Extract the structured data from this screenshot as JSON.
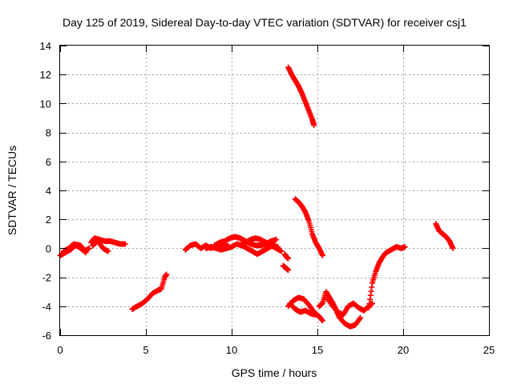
{
  "chart_data": {
    "type": "scatter",
    "title": "Day 125 of 2019, Sidereal Day-to-day VTEC variation (SDTVAR) for receiver csj1",
    "xlabel": "GPS time / hours",
    "ylabel": "SDTVAR / TECUs",
    "xlim": [
      0,
      25
    ],
    "ylim": [
      -6,
      14
    ],
    "xticks": [
      0,
      5,
      10,
      15,
      20,
      25
    ],
    "yticks": [
      -6,
      -4,
      -2,
      0,
      2,
      4,
      6,
      8,
      10,
      12,
      14
    ],
    "grid": true,
    "marker": "+",
    "color": "#ff0000",
    "series": [
      {
        "x": [
          0.0,
          0.3,
          0.6,
          0.9,
          1.1,
          1.4,
          1.7
        ],
        "y": [
          -0.5,
          -0.3,
          -0.1,
          0.2,
          0.1,
          -0.2,
          0.0
        ]
      },
      {
        "x": [
          0.2,
          0.5,
          0.8,
          1.2,
          1.5
        ],
        "y": [
          -0.2,
          0.0,
          0.3,
          0.2,
          -0.3
        ]
      },
      {
        "x": [
          1.8,
          2.0,
          2.3,
          2.6,
          2.9,
          3.2,
          3.5,
          3.8
        ],
        "y": [
          0.4,
          0.7,
          0.6,
          0.5,
          0.5,
          0.4,
          0.3,
          0.3
        ]
      },
      {
        "x": [
          1.9,
          2.2,
          2.5,
          2.8
        ],
        "y": [
          0.2,
          0.5,
          0.0,
          -0.2
        ]
      },
      {
        "x": [
          4.2,
          4.5,
          4.8,
          5.1,
          5.4,
          5.7,
          5.9,
          6.1,
          6.2
        ],
        "y": [
          -4.2,
          -4.0,
          -3.8,
          -3.5,
          -3.1,
          -2.9,
          -2.8,
          -2.0,
          -1.8
        ]
      },
      {
        "x": [
          7.3,
          7.6,
          7.9,
          8.2,
          8.5,
          8.8,
          9.1,
          9.4,
          9.7
        ],
        "y": [
          -0.1,
          0.2,
          0.3,
          0.0,
          0.2,
          0.0,
          0.2,
          0.1,
          0.3
        ]
      },
      {
        "x": [
          9.0,
          9.3,
          9.6,
          9.9,
          10.2,
          10.5,
          10.8,
          11.1,
          11.4,
          11.7,
          12.0,
          12.3,
          12.6
        ],
        "y": [
          0.2,
          0.4,
          0.5,
          0.7,
          0.8,
          0.7,
          0.5,
          0.3,
          0.2,
          0.2,
          0.3,
          0.5,
          0.6
        ]
      },
      {
        "x": [
          8.5,
          8.8,
          9.1,
          9.4,
          9.7,
          10.0,
          10.3,
          10.6,
          10.9,
          11.2,
          11.5,
          11.8,
          12.1,
          12.4,
          12.7
        ],
        "y": [
          0.0,
          0.1,
          0.0,
          -0.1,
          0.0,
          0.1,
          0.3,
          0.2,
          0.0,
          -0.2,
          -0.4,
          -0.2,
          0.0,
          0.2,
          0.1
        ]
      },
      {
        "x": [
          10.5,
          10.8,
          11.1,
          11.4,
          11.7,
          12.0,
          12.3,
          12.6,
          12.9
        ],
        "y": [
          0.2,
          0.4,
          0.6,
          0.7,
          0.6,
          0.4,
          0.2,
          0.0,
          -0.2
        ]
      },
      {
        "x": [
          13.1,
          13.2,
          13.3
        ],
        "y": [
          -0.4,
          -0.6,
          -0.7
        ]
      },
      {
        "x": [
          13.0,
          13.1,
          13.2,
          13.3
        ],
        "y": [
          -1.2,
          -1.3,
          -1.4,
          -1.5
        ]
      },
      {
        "x": [
          13.3,
          13.5,
          13.7,
          13.9,
          14.1,
          14.3,
          14.5,
          14.7,
          14.8
        ],
        "y": [
          12.5,
          12.0,
          11.6,
          11.2,
          10.7,
          10.1,
          9.5,
          8.9,
          8.5
        ]
      },
      {
        "x": [
          13.7,
          13.9,
          14.1,
          14.3,
          14.5,
          14.7,
          14.9,
          15.1,
          15.3
        ],
        "y": [
          3.4,
          3.2,
          2.9,
          2.5,
          1.9,
          1.0,
          0.4,
          0.0,
          -0.5
        ]
      },
      {
        "x": [
          13.3,
          13.6,
          13.9,
          14.2,
          14.5,
          14.8,
          15.1,
          15.3
        ],
        "y": [
          -4.0,
          -3.6,
          -3.4,
          -3.5,
          -3.9,
          -4.4,
          -4.7,
          -5.0
        ]
      },
      {
        "x": [
          13.4,
          13.7,
          14.0,
          14.3,
          14.6,
          14.9
        ],
        "y": [
          -3.8,
          -4.2,
          -4.4,
          -4.3,
          -4.5,
          -4.6
        ]
      },
      {
        "x": [
          15.1,
          15.3,
          15.5,
          15.7,
          15.9,
          16.1,
          16.3,
          16.6,
          16.9,
          17.2,
          17.5
        ],
        "y": [
          -4.0,
          -3.8,
          -3.0,
          -3.4,
          -3.8,
          -4.3,
          -4.8,
          -5.2,
          -5.4,
          -5.3,
          -4.8
        ]
      },
      {
        "x": [
          15.6,
          15.9,
          16.2,
          16.5,
          16.8,
          17.1,
          17.4,
          17.7,
          18.0,
          18.2
        ],
        "y": [
          -3.5,
          -4.0,
          -4.4,
          -4.6,
          -4.0,
          -3.8,
          -4.1,
          -4.3,
          -4.0,
          -3.8
        ]
      },
      {
        "x": [
          18.0,
          18.2,
          18.4,
          18.6,
          18.8,
          19.0,
          19.3,
          19.6,
          19.9,
          20.1
        ],
        "y": [
          -4.1,
          -2.4,
          -1.6,
          -1.0,
          -0.6,
          -0.3,
          -0.1,
          0.1,
          0.0,
          0.1
        ]
      },
      {
        "x": [
          21.9,
          22.1,
          22.3,
          22.5,
          22.7,
          22.9
        ],
        "y": [
          1.7,
          1.2,
          1.0,
          0.8,
          0.5,
          0.0
        ]
      }
    ]
  }
}
